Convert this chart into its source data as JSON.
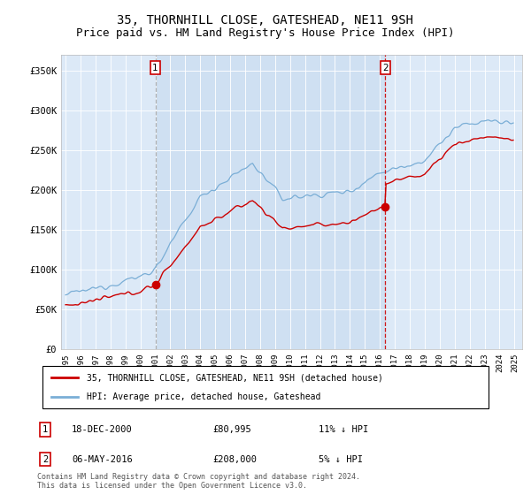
{
  "title": "35, THORNHILL CLOSE, GATESHEAD, NE11 9SH",
  "subtitle": "Price paid vs. HM Land Registry's House Price Index (HPI)",
  "background_color": "#ffffff",
  "plot_bg_color": "#dce9f7",
  "shade_color": "#c5d9ee",
  "ylim": [
    0,
    370000
  ],
  "yticks": [
    0,
    50000,
    100000,
    150000,
    200000,
    250000,
    300000,
    350000
  ],
  "ytick_labels": [
    "£0",
    "£50K",
    "£100K",
    "£150K",
    "£200K",
    "£250K",
    "£300K",
    "£350K"
  ],
  "xmin": 1994.7,
  "xmax": 2025.5,
  "sale1_date_num": 2001.0,
  "sale1_price": 80995,
  "sale1_label": "1",
  "sale1_date_str": "18-DEC-2000",
  "sale1_price_str": "£80,995",
  "sale1_hpi_str": "11% ↓ HPI",
  "sale1_vline_color": "#aaaaaa",
  "sale1_vline_style": "--",
  "sale2_date_num": 2016.37,
  "sale2_price": 208000,
  "sale2_label": "2",
  "sale2_date_str": "06-MAY-2016",
  "sale2_price_str": "£208,000",
  "sale2_hpi_str": "5% ↓ HPI",
  "sale2_vline_color": "#cc0000",
  "sale2_vline_style": "--",
  "legend_line1": "35, THORNHILL CLOSE, GATESHEAD, NE11 9SH (detached house)",
  "legend_line2": "HPI: Average price, detached house, Gateshead",
  "footer": "Contains HM Land Registry data © Crown copyright and database right 2024.\nThis data is licensed under the Open Government Licence v3.0.",
  "price_line_color": "#cc0000",
  "hpi_line_color": "#7aaed6",
  "sale_marker_color": "#cc0000",
  "title_fontsize": 10,
  "subtitle_fontsize": 9
}
